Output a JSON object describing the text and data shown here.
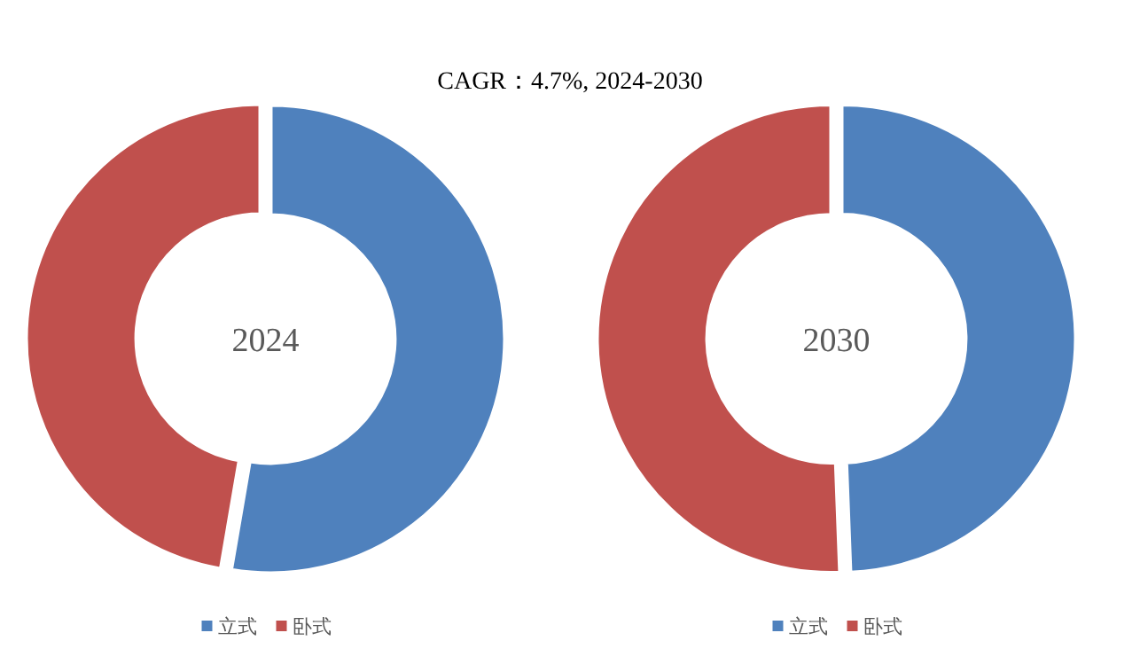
{
  "chart_data": [
    {
      "type": "donut",
      "title": "CAGR：4.7%, 2024-2030",
      "annotations": [
        "2024"
      ],
      "categories": [
        "立式",
        "卧式"
      ],
      "values": [
        52.7,
        47.3
      ],
      "colors": [
        "#4f81bd",
        "#c0504d"
      ],
      "legend": "bottom"
    },
    {
      "type": "donut",
      "annotations": [
        "2030"
      ],
      "categories": [
        "立式",
        "卧式"
      ],
      "values": [
        49.4,
        50.6
      ],
      "colors": [
        "#4f81bd",
        "#c0504d"
      ],
      "legend": "bottom"
    }
  ]
}
